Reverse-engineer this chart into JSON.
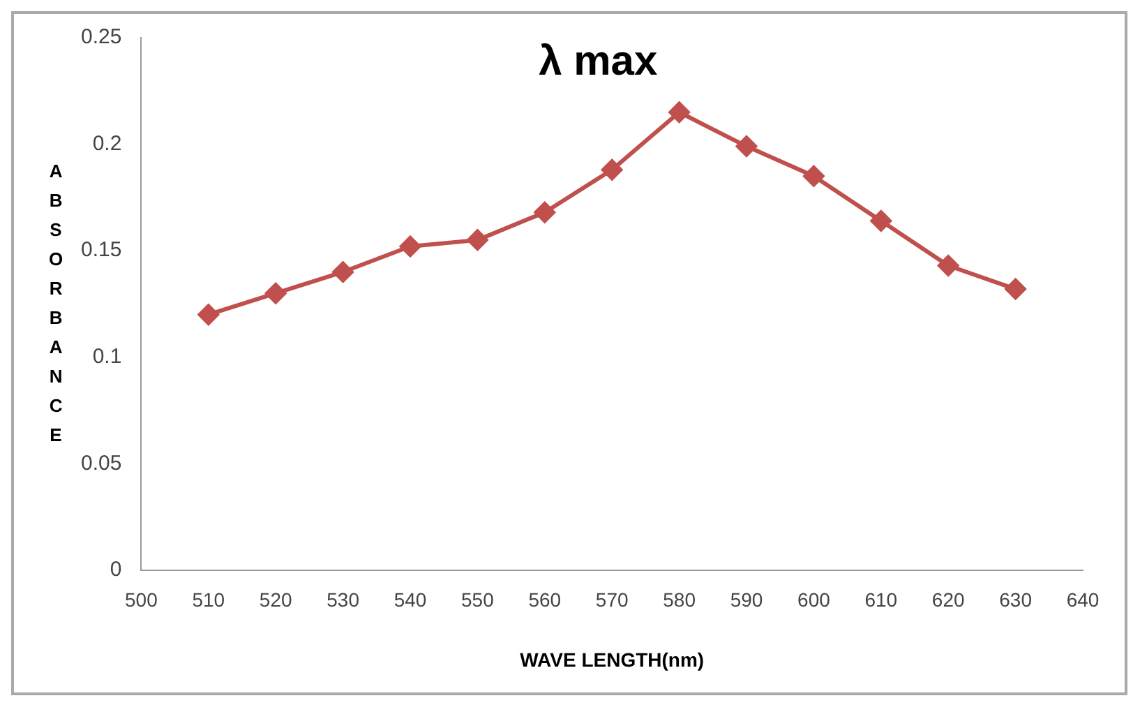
{
  "chart_data": {
    "type": "line",
    "title": "λ max",
    "xlabel": "WAVE LENGTH(nm)",
    "ylabel": "ABSORBANCE",
    "x": [
      510,
      520,
      530,
      540,
      550,
      560,
      570,
      580,
      590,
      600,
      610,
      620,
      630
    ],
    "series": [
      {
        "color": "#c0504d",
        "values": [
          0.12,
          0.13,
          0.14,
          0.152,
          0.155,
          0.168,
          0.188,
          0.215,
          0.199,
          0.185,
          0.164,
          0.143,
          0.132
        ]
      }
    ],
    "xlim": [
      500,
      640
    ],
    "xticks": [
      500,
      510,
      520,
      530,
      540,
      550,
      560,
      570,
      580,
      590,
      600,
      610,
      620,
      630,
      640
    ],
    "ylim": [
      0,
      0.25
    ],
    "yticks": [
      0,
      0.05,
      0.1,
      0.15,
      0.2,
      0.25
    ],
    "grid": false,
    "legend": false,
    "marker": "diamond",
    "line_style": "solid"
  }
}
